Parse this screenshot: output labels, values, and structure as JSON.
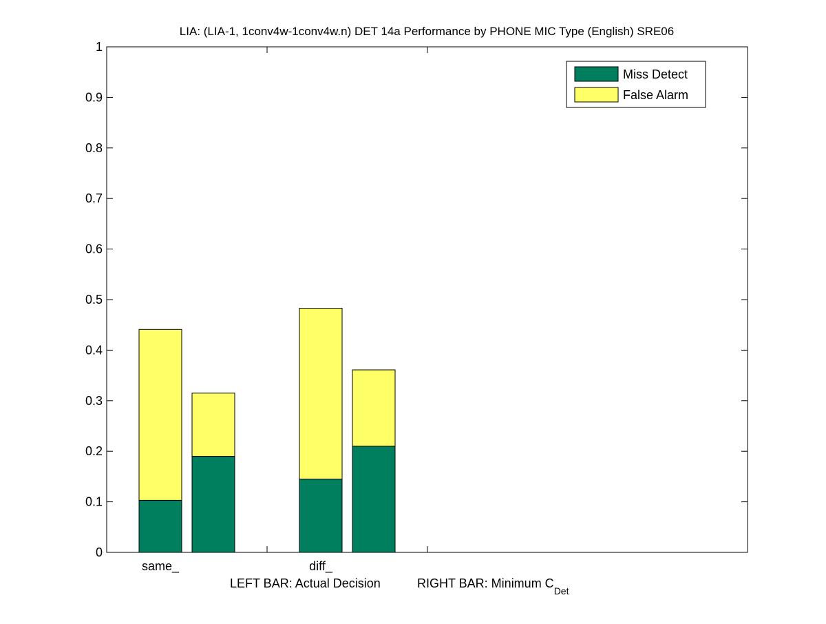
{
  "chart_data": {
    "type": "bar",
    "stacked": true,
    "title": "LIA: (LIA-1, 1conv4w-1conv4w.n) DET 14a Performance by PHONE MIC Type (English) SRE06",
    "xlabel": {
      "left": "LEFT BAR: Actual Decision",
      "right_prefix": "RIGHT BAR: Minimum C",
      "right_subscript": "Det"
    },
    "ylabel": "",
    "ylim": [
      0,
      1
    ],
    "yticks": [
      "0",
      "0.1",
      "0.2",
      "0.3",
      "0.4",
      "0.5",
      "0.6",
      "0.7",
      "0.8",
      "0.9",
      "1"
    ],
    "categories": [
      "same_",
      "diff_"
    ],
    "bar_roles": [
      "Actual Decision",
      "Minimum C_Det"
    ],
    "series": [
      {
        "name": "Miss Detect",
        "color": "#007f5f",
        "values": [
          [
            0.103,
            0.19
          ],
          [
            0.145,
            0.21
          ]
        ]
      },
      {
        "name": "False Alarm",
        "color": "#ffff66",
        "values": [
          [
            0.338,
            0.125
          ],
          [
            0.338,
            0.151
          ]
        ]
      }
    ],
    "totals": [
      [
        0.441,
        0.315
      ],
      [
        0.483,
        0.361
      ]
    ],
    "legend": {
      "placement": "top-right",
      "entries": [
        "Miss Detect",
        "False Alarm"
      ]
    },
    "grid": false
  }
}
